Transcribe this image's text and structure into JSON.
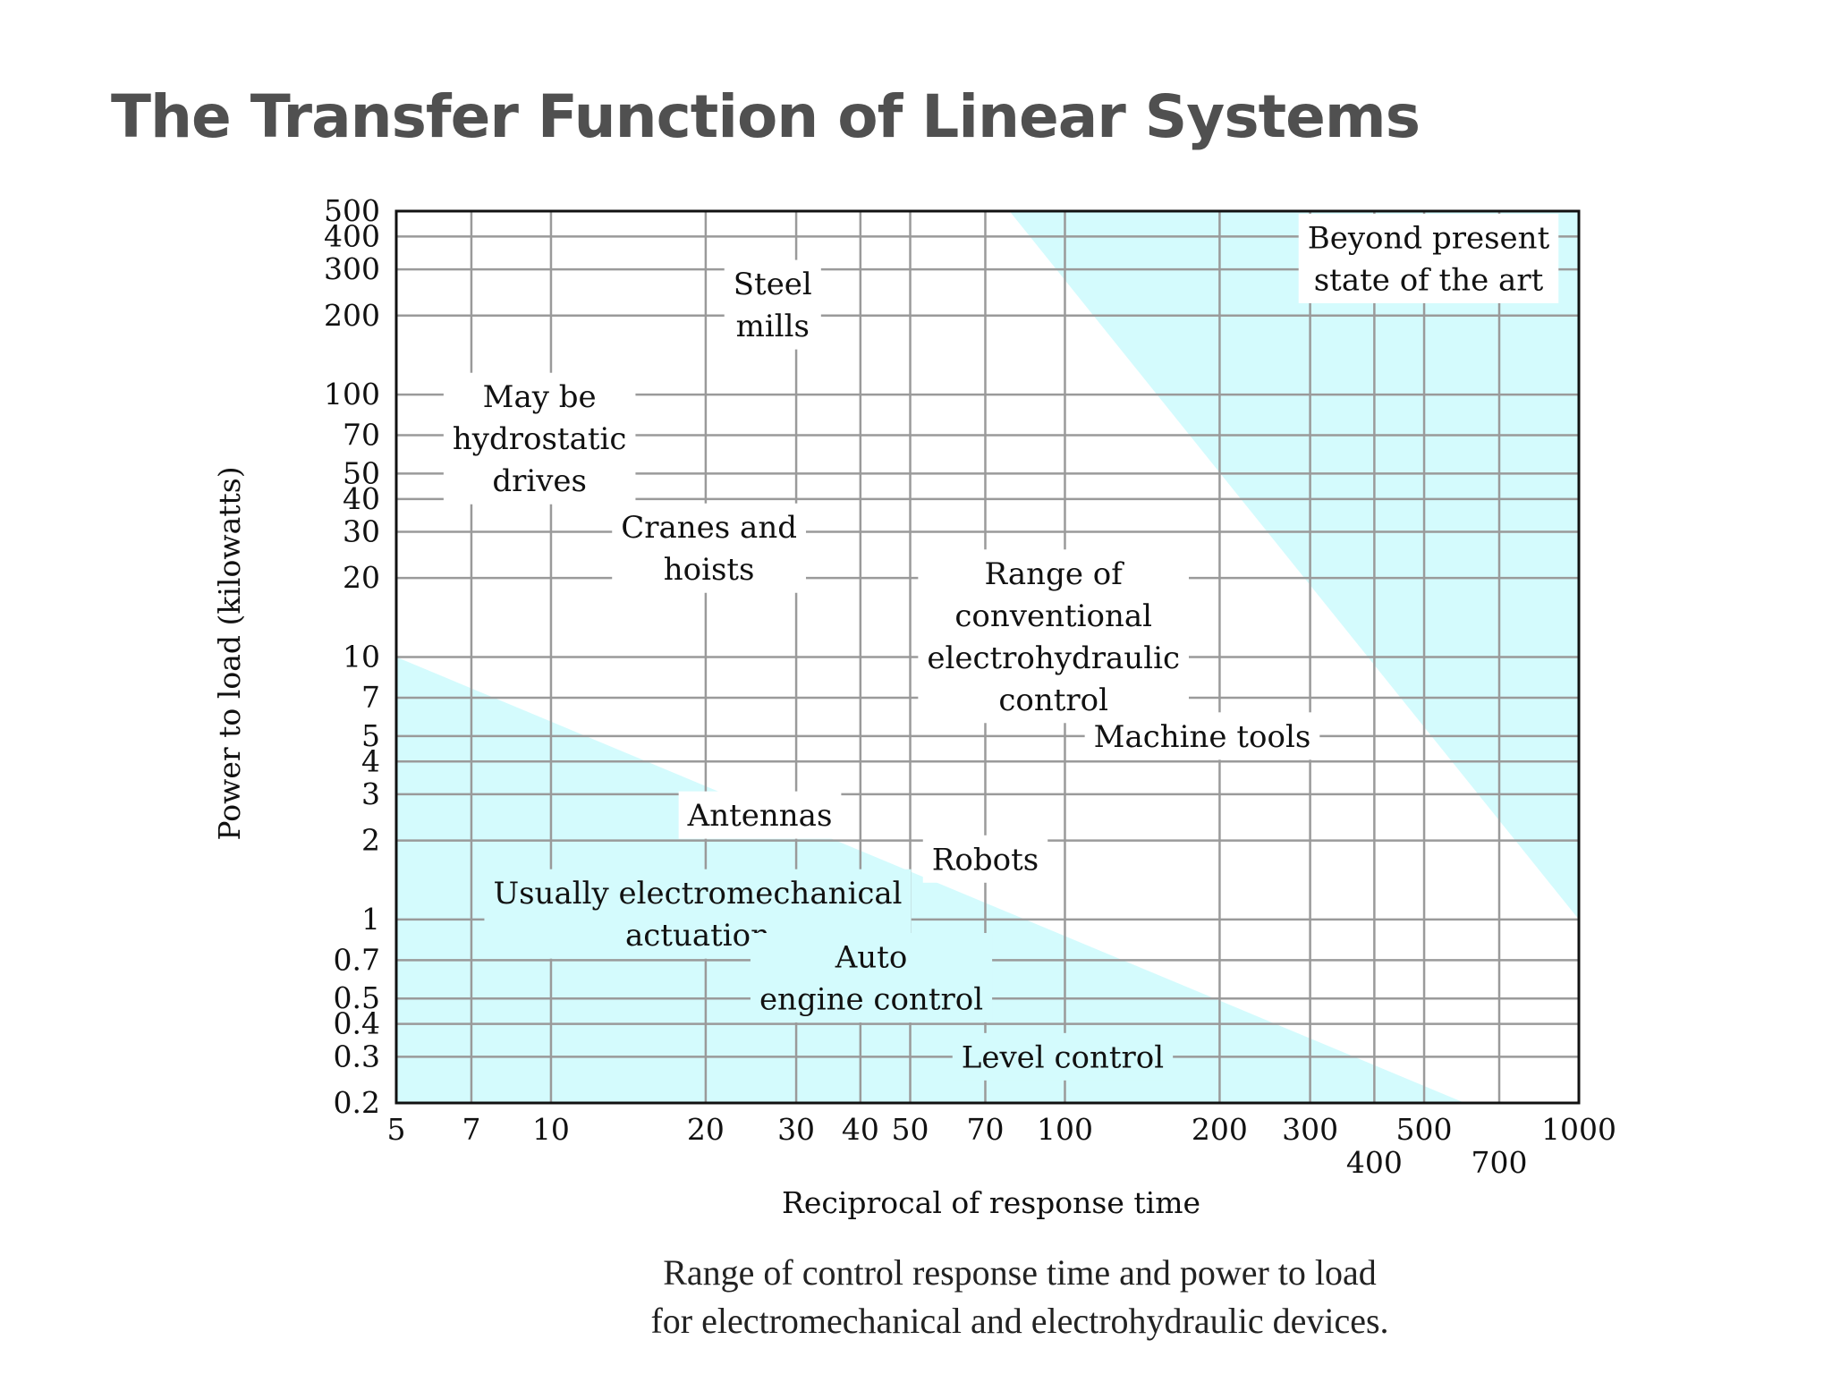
{
  "slide": {
    "title": "The Transfer Function of Linear Systems"
  },
  "caption": {
    "line1": "Range of control response time and power to load",
    "line2": "for electromechanical and electrohydraulic devices."
  },
  "colors": {
    "region_fill": "#d4fbfd",
    "grid": "#9a9a9a",
    "frame": "#111111",
    "text": "#111111",
    "title": "#505050"
  },
  "chart_data": {
    "type": "area",
    "scale": {
      "x": "log",
      "y": "log"
    },
    "xlabel": "Reciprocal of response time",
    "ylabel": "Power to load  (kilowatts)",
    "xlim": [
      5,
      1000
    ],
    "ylim": [
      0.2,
      500
    ],
    "grid": true,
    "x_ticks": [
      {
        "value": 5,
        "label": "5"
      },
      {
        "value": 7,
        "label": "7"
      },
      {
        "value": 10,
        "label": "10"
      },
      {
        "value": 20,
        "label": "20"
      },
      {
        "value": 30,
        "label": "30"
      },
      {
        "value": 40,
        "label": "40"
      },
      {
        "value": 50,
        "label": "50"
      },
      {
        "value": 70,
        "label": "70"
      },
      {
        "value": 100,
        "label": "100"
      },
      {
        "value": 200,
        "label": "200"
      },
      {
        "value": 300,
        "label": "300"
      },
      {
        "value": 400,
        "label": "400"
      },
      {
        "value": 500,
        "label": "500"
      },
      {
        "value": 700,
        "label": "700"
      },
      {
        "value": 1000,
        "label": "1000"
      }
    ],
    "y_ticks": [
      {
        "value": 0.2,
        "label": "0.2"
      },
      {
        "value": 0.3,
        "label": "0.3"
      },
      {
        "value": 0.4,
        "label": "0.4"
      },
      {
        "value": 0.5,
        "label": "0.5"
      },
      {
        "value": 0.7,
        "label": "0.7"
      },
      {
        "value": 1,
        "label": "1"
      },
      {
        "value": 2,
        "label": "2"
      },
      {
        "value": 3,
        "label": "3"
      },
      {
        "value": 4,
        "label": "4"
      },
      {
        "value": 5,
        "label": "5"
      },
      {
        "value": 7,
        "label": "7"
      },
      {
        "value": 10,
        "label": "10"
      },
      {
        "value": 20,
        "label": "20"
      },
      {
        "value": 30,
        "label": "30"
      },
      {
        "value": 40,
        "label": "40"
      },
      {
        "value": 50,
        "label": "50"
      },
      {
        "value": 70,
        "label": "70"
      },
      {
        "value": 100,
        "label": "100"
      },
      {
        "value": 200,
        "label": "200"
      },
      {
        "value": 300,
        "label": "300"
      },
      {
        "value": 400,
        "label": "400"
      },
      {
        "value": 500,
        "label": "500"
      }
    ],
    "regions": [
      {
        "label_ref": "electromechanical",
        "points": [
          [
            5,
            10
          ],
          [
            600,
            0.2
          ],
          [
            5,
            0.2
          ]
        ]
      },
      {
        "label_ref": "beyond",
        "points": [
          [
            78,
            500
          ],
          [
            1000,
            1
          ],
          [
            1000,
            500
          ]
        ]
      }
    ],
    "annotations": [
      {
        "id": "steel-mills",
        "lines": [
          "Steel",
          "mills"
        ],
        "x": 27,
        "y": 220
      },
      {
        "id": "hydrostatic",
        "lines": [
          "May be",
          "hydrostatic",
          "drives"
        ],
        "x": 9.5,
        "y": 68
      },
      {
        "id": "cranes",
        "lines": [
          "Cranes and",
          "hoists"
        ],
        "x": 20.3,
        "y": 26
      },
      {
        "id": "conventional",
        "lines": [
          "Range of",
          "conventional",
          "electrohydraulic",
          "control"
        ],
        "x": 95,
        "y": 12
      },
      {
        "id": "machine-tools",
        "lines": [
          "Machine tools"
        ],
        "x": 185,
        "y": 5
      },
      {
        "id": "antennas",
        "lines": [
          "Antennas"
        ],
        "x": 25.5,
        "y": 2.5
      },
      {
        "id": "robots",
        "lines": [
          "Robots"
        ],
        "x": 70,
        "y": 1.7
      },
      {
        "id": "electromechanical",
        "lines": [
          "Usually electromechanical",
          "actuation"
        ],
        "x": 19.3,
        "y": 1.05
      },
      {
        "id": "auto",
        "lines": [
          "Auto",
          "engine control"
        ],
        "x": 42,
        "y": 0.6
      },
      {
        "id": "level",
        "lines": [
          "Level control"
        ],
        "x": 99,
        "y": 0.3
      },
      {
        "id": "beyond",
        "lines": [
          "Beyond present",
          "state of the art"
        ],
        "x": 510,
        "y": 330
      }
    ]
  }
}
